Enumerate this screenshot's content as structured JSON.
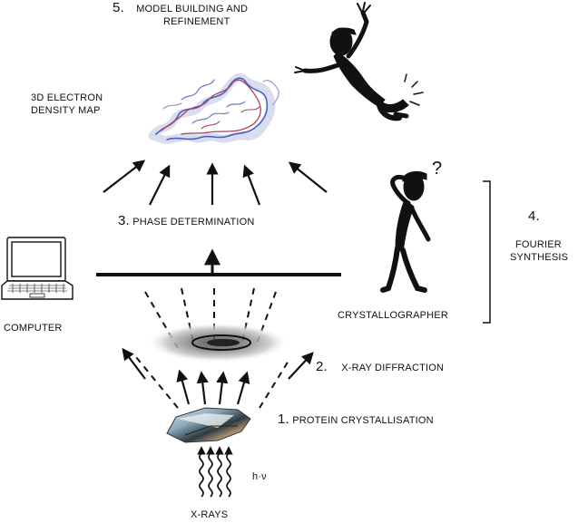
{
  "title": {
    "number": "5.",
    "line1": "MODEL BUILDING AND",
    "line2": "REFINEMENT"
  },
  "labels": {
    "density_line1": "3D ELECTRON",
    "density_line2": "DENSITY MAP",
    "phase_number": "3.",
    "phase_text": "PHASE DETERMINATION",
    "fourier_number": "4.",
    "fourier_line1": "FOURIER",
    "fourier_line2": "SYNTHESIS",
    "computer": "COMPUTER",
    "crystallographer": "CRYSTALLOGRAPHER",
    "diffraction_number": "2.",
    "diffraction_text": "X-RAY DIFFRACTION",
    "crystallisation_number": "1.",
    "crystallisation_text": "PROTEIN CRYSTALLISATION",
    "photon_energy": "h·ν",
    "xrays": "X-RAYS"
  },
  "figure": {
    "question_mark": "?"
  },
  "colors": {
    "ink": "#111111",
    "density_blue": "#4a5fc8",
    "density_red": "#b04060"
  }
}
